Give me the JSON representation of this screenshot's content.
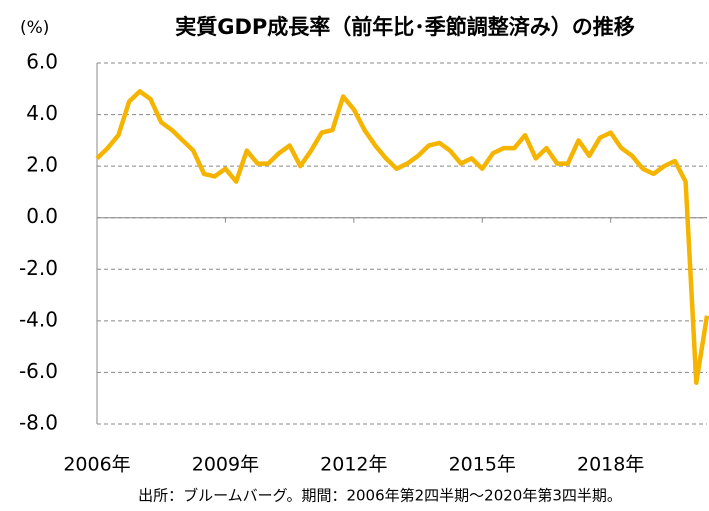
{
  "chart_data": {
    "type": "line",
    "title": "実質GDP成長率（前年比･季節調整済み）の推移",
    "y_unit": "(%)",
    "note": "出所：ブルームバーグ。期間：2006年第2四半期～2020年第3四半期。",
    "categories": [
      "2006年",
      null,
      null,
      null,
      null,
      null,
      null,
      null,
      null,
      null,
      null,
      null,
      "2009年",
      null,
      null,
      null,
      null,
      null,
      null,
      null,
      null,
      null,
      null,
      null,
      "2012年",
      null,
      null,
      null,
      null,
      null,
      null,
      null,
      null,
      null,
      null,
      null,
      "2015年",
      null,
      null,
      null,
      null,
      null,
      null,
      null,
      null,
      null,
      null,
      null,
      "2018年",
      null,
      null,
      null,
      null,
      null,
      null,
      null,
      null,
      null
    ],
    "values": [
      2.3,
      2.7,
      3.2,
      4.5,
      4.9,
      4.6,
      3.7,
      3.4,
      3.0,
      2.6,
      1.7,
      1.6,
      1.9,
      1.4,
      2.6,
      2.1,
      2.1,
      2.5,
      2.8,
      2.0,
      2.6,
      3.3,
      3.4,
      4.7,
      4.2,
      3.4,
      2.8,
      2.3,
      1.9,
      2.1,
      2.4,
      2.8,
      2.9,
      2.6,
      2.1,
      2.3,
      1.9,
      2.5,
      2.7,
      2.7,
      3.2,
      2.3,
      2.7,
      2.1,
      2.1,
      3.0,
      2.4,
      3.1,
      3.3,
      2.7,
      2.4,
      1.9,
      1.7,
      2.0,
      2.2,
      1.4,
      -6.4,
      -3.8
    ],
    "color": "#f5b400",
    "ylim": [
      -8,
      6
    ],
    "yticks": [
      {
        "value": -8,
        "label": "-8.0"
      },
      {
        "value": -6,
        "label": "-6.0"
      },
      {
        "value": -4,
        "label": "-4.0"
      },
      {
        "value": -2,
        "label": "-2.0"
      },
      {
        "value": 0,
        "label": "0.0"
      },
      {
        "value": 2,
        "label": "2.0"
      },
      {
        "value": 4,
        "label": "4.0"
      },
      {
        "value": 6,
        "label": "6.0"
      }
    ],
    "grid": true
  }
}
